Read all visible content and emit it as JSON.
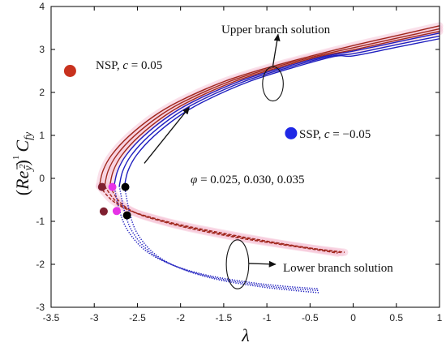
{
  "chart_data": {
    "type": "line",
    "xlabel": "λ",
    "ylabel": "(Re_y)^(1/2) C_fy",
    "ylabel_parts": {
      "paren_open": "(",
      "base": "Re",
      "sub1": "y",
      "paren_close": ")",
      "exp_num": "1",
      "exp_den": "2",
      "cf": "C",
      "cf_sub": "fy"
    },
    "xlim": [
      -3.5,
      1
    ],
    "ylim": [
      -3,
      4
    ],
    "x_ticks": [
      -3.5,
      -3,
      -2.5,
      -2,
      -1.5,
      -1,
      -0.5,
      0,
      0.5,
      1
    ],
    "y_ticks": [
      -3,
      -2,
      -1,
      0,
      1,
      2,
      3,
      4
    ],
    "x_tick_labels": [
      "-3.5",
      "-3",
      "-2.5",
      "-2",
      "-1.5",
      "-1",
      "-0.5",
      "0",
      "0.5",
      "1"
    ],
    "y_tick_labels": [
      "-3",
      "-2",
      "-1",
      "0",
      "1",
      "2",
      "3",
      "4"
    ],
    "grid": false,
    "colors": {
      "nsp": "#a0281e",
      "ssp": "#1f1fbf",
      "nsp_marker": "#c8321e",
      "ssp_marker": "#1f28e6",
      "crit_nsp": "#7f2030",
      "crit_mid": "#e632e6",
      "crit_ssp": "#000000",
      "halo": "#f6c6d8"
    },
    "annotations": {
      "upper_branch": "Upper branch solution",
      "lower_branch": "Lower branch solution",
      "nsp": "NSP, c = 0.05",
      "nsp_name": "NSP, ",
      "nsp_c": "c",
      "nsp_val": " = 0.05",
      "ssp": "SSP, c = −0.05",
      "ssp_name": "SSP, ",
      "ssp_c": "c",
      "ssp_val": " = −0.05",
      "phi": "φ = 0.025, 0.030, 0.035",
      "phi_sym": "φ",
      "phi_val": " = 0.025, 0.030, 0.035"
    },
    "series": [
      {
        "family": "NSP",
        "branch": "upper",
        "style": "solid",
        "x": [
          -2.94,
          -2.9,
          -2.8,
          -2.6,
          -2.3,
          -2.0,
          -1.5,
          -1.0,
          -0.5,
          0.0,
          0.5,
          1.0
        ],
        "y": [
          -0.18,
          0.17,
          0.54,
          0.98,
          1.46,
          1.81,
          2.25,
          2.57,
          2.84,
          3.09,
          3.32,
          3.55
        ]
      },
      {
        "family": "NSP",
        "branch": "upper",
        "style": "solid",
        "x": [
          -2.88,
          -2.84,
          -2.74,
          -2.54,
          -2.24,
          -1.94,
          -1.44,
          -0.94,
          -0.44,
          0.0,
          0.5,
          1.0
        ],
        "y": [
          -0.18,
          0.17,
          0.54,
          0.98,
          1.46,
          1.81,
          2.25,
          2.57,
          2.84,
          3.04,
          3.26,
          3.48
        ]
      },
      {
        "family": "NSP",
        "branch": "upper",
        "style": "solid",
        "x": [
          -2.82,
          -2.78,
          -2.68,
          -2.48,
          -2.18,
          -1.88,
          -1.38,
          -0.88,
          -0.38,
          0.0,
          0.5,
          1.0
        ],
        "y": [
          -0.18,
          0.17,
          0.54,
          0.98,
          1.46,
          1.81,
          2.25,
          2.57,
          2.84,
          2.99,
          3.21,
          3.42
        ]
      },
      {
        "family": "SSP",
        "branch": "upper",
        "style": "solid",
        "x": [
          -2.77,
          -2.73,
          -2.63,
          -2.43,
          -2.13,
          -1.83,
          -1.33,
          -0.83,
          -0.33,
          0.0,
          0.5,
          1.0
        ],
        "y": [
          -0.18,
          0.17,
          0.54,
          0.98,
          1.46,
          1.81,
          2.25,
          2.57,
          2.84,
          2.96,
          3.17,
          3.38
        ]
      },
      {
        "family": "SSP",
        "branch": "upper",
        "style": "solid",
        "x": [
          -2.71,
          -2.67,
          -2.57,
          -2.37,
          -2.07,
          -1.77,
          -1.27,
          -0.77,
          -0.27,
          0.0,
          0.5,
          1.0
        ],
        "y": [
          -0.18,
          0.17,
          0.54,
          0.98,
          1.46,
          1.81,
          2.25,
          2.57,
          2.84,
          2.9,
          3.11,
          3.31
        ]
      },
      {
        "family": "SSP",
        "branch": "upper",
        "style": "solid",
        "x": [
          -2.65,
          -2.61,
          -2.51,
          -2.31,
          -2.01,
          -1.71,
          -1.21,
          -0.71,
          -0.21,
          0.0,
          0.5,
          1.0
        ],
        "y": [
          -0.18,
          0.17,
          0.54,
          0.98,
          1.46,
          1.81,
          2.25,
          2.57,
          2.84,
          2.85,
          3.05,
          3.25
        ]
      },
      {
        "family": "NSP",
        "branch": "lower",
        "style": "dashed",
        "x": [
          -2.94,
          -2.8,
          -2.6,
          -2.3,
          -2.0,
          -1.5,
          -1.0,
          -0.5,
          -0.1
        ],
        "y": [
          -0.18,
          -0.5,
          -0.74,
          -0.93,
          -1.08,
          -1.28,
          -1.46,
          -1.62,
          -1.72
        ]
      },
      {
        "family": "NSP",
        "branch": "lower",
        "style": "dashed",
        "x": [
          -2.88,
          -2.75,
          -2.55,
          -2.25,
          -1.95,
          -1.45,
          -0.95,
          -0.45,
          -0.13
        ],
        "y": [
          -0.18,
          -0.53,
          -0.78,
          -0.97,
          -1.12,
          -1.32,
          -1.49,
          -1.64,
          -1.73
        ]
      },
      {
        "family": "NSP",
        "branch": "lower",
        "style": "dashed",
        "x": [
          -2.82,
          -2.7,
          -2.5,
          -2.2,
          -1.9,
          -1.4,
          -0.9,
          -0.4,
          -0.18
        ],
        "y": [
          -0.18,
          -0.56,
          -0.82,
          -1.01,
          -1.16,
          -1.36,
          -1.52,
          -1.67,
          -1.74
        ]
      },
      {
        "family": "SSP",
        "branch": "lower",
        "style": "dotted",
        "x": [
          -2.77,
          -2.7,
          -2.6,
          -2.4,
          -2.1,
          -1.7,
          -1.2,
          -0.8,
          -0.4
        ],
        "y": [
          -0.18,
          -0.8,
          -1.25,
          -1.69,
          -2.01,
          -2.25,
          -2.42,
          -2.51,
          -2.57
        ]
      },
      {
        "family": "SSP",
        "branch": "lower",
        "style": "dotted",
        "x": [
          -2.71,
          -2.64,
          -2.54,
          -2.34,
          -2.04,
          -1.64,
          -1.14,
          -0.74,
          -0.4
        ],
        "y": [
          -0.18,
          -0.84,
          -1.3,
          -1.74,
          -2.06,
          -2.3,
          -2.47,
          -2.56,
          -2.61
        ]
      },
      {
        "family": "SSP",
        "branch": "lower",
        "style": "dotted",
        "x": [
          -2.65,
          -2.58,
          -2.48,
          -2.28,
          -1.98,
          -1.58,
          -1.08,
          -0.68,
          -0.4
        ],
        "y": [
          -0.18,
          -0.88,
          -1.35,
          -1.79,
          -2.11,
          -2.35,
          -2.52,
          -2.61,
          -2.66
        ]
      }
    ],
    "critical_points": [
      {
        "x": -2.91,
        "y": -0.2,
        "color": "crit_nsp"
      },
      {
        "x": -2.79,
        "y": -0.2,
        "color": "crit_mid"
      },
      {
        "x": -2.64,
        "y": -0.2,
        "color": "crit_ssp"
      },
      {
        "x": -2.89,
        "y": -0.77,
        "color": "crit_nsp"
      },
      {
        "x": -2.74,
        "y": -0.76,
        "color": "crit_mid"
      },
      {
        "x": -2.62,
        "y": -0.86,
        "color": "crit_ssp"
      }
    ],
    "legend_markers": [
      {
        "x": -3.28,
        "y": 2.5,
        "color": "nsp_marker"
      },
      {
        "x": -0.72,
        "y": 1.05,
        "color": "ssp_marker"
      }
    ],
    "ellipses": [
      {
        "cx": -0.93,
        "cy": 2.2,
        "rx": 0.12,
        "ry": 0.4
      },
      {
        "cx": -1.34,
        "cy": -2.0,
        "rx": 0.13,
        "ry": 0.57
      }
    ],
    "arrows": [
      {
        "from": [
          -0.93,
          2.62
        ],
        "to": [
          -0.87,
          3.35
        ]
      },
      {
        "from": [
          -2.42,
          0.35
        ],
        "to": [
          -1.9,
          1.65
        ]
      },
      {
        "from": [
          -1.21,
          -1.98
        ],
        "to": [
          -0.9,
          -2.0
        ]
      }
    ]
  }
}
